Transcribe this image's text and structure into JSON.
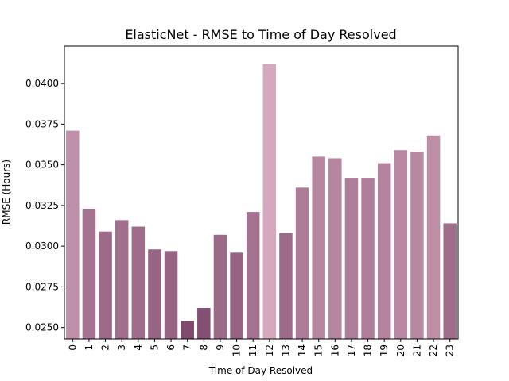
{
  "chart_data": {
    "type": "bar",
    "title": "ElasticNet - RMSE to Time of Day Resolved",
    "xlabel": "Time of Day Resolved",
    "ylabel": "RMSE (Hours)",
    "categories": [
      "0",
      "1",
      "2",
      "3",
      "4",
      "5",
      "6",
      "7",
      "8",
      "9",
      "10",
      "11",
      "12",
      "13",
      "14",
      "15",
      "16",
      "17",
      "18",
      "19",
      "20",
      "21",
      "22",
      "23"
    ],
    "values": [
      0.0371,
      0.0323,
      0.0309,
      0.0316,
      0.0312,
      0.0298,
      0.0297,
      0.0254,
      0.0262,
      0.0307,
      0.0296,
      0.0321,
      0.0412,
      0.0308,
      0.0336,
      0.0355,
      0.0354,
      0.0342,
      0.0342,
      0.0351,
      0.0359,
      0.0358,
      0.0368,
      0.0314
    ],
    "ylim": [
      0.0243,
      0.0423
    ],
    "yticks": [
      "0.0250",
      "0.0275",
      "0.0300",
      "0.0325",
      "0.0350",
      "0.0375",
      "0.0400"
    ],
    "grid": false,
    "legend": "none",
    "colors": {
      "low": "#7f4a6e",
      "high": "#d6a8bd"
    }
  }
}
